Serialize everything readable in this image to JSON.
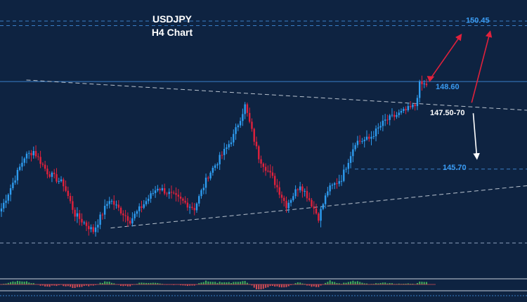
{
  "chart_data": {
    "type": "candlestick",
    "title": "USDJPY",
    "subtitle": "H4 Chart",
    "colors": {
      "background": "#0e2341",
      "up": "#2e9cf0",
      "down": "#e0213c",
      "level_line": "#3a7fc8",
      "trend_line": "#b9c3cf",
      "arrow_red": "#e0213c",
      "arrow_white": "#ffffff"
    },
    "ylim": [
      141.3,
      151.3
    ],
    "grid": false,
    "levels": [
      {
        "label": "150.45",
        "value": 150.45,
        "style": "blue"
      },
      {
        "label": "148.60",
        "value": 148.6,
        "style": "blue"
      },
      {
        "label": "147.50-70",
        "value": 147.6,
        "style": "white"
      },
      {
        "label": "145.70",
        "value": 145.7,
        "style": "blue"
      }
    ],
    "trend_lines": [
      {
        "from": [
          0.05,
          148.65
        ],
        "to": [
          1.0,
          147.65
        ]
      },
      {
        "from": [
          0.21,
          143.75
        ],
        "to": [
          1.0,
          145.15
        ]
      }
    ],
    "anchors": [
      [
        0,
        144.4
      ],
      [
        10,
        146.1
      ],
      [
        14,
        146.3
      ],
      [
        20,
        145.6
      ],
      [
        27,
        145.2
      ],
      [
        32,
        144.2
      ],
      [
        40,
        143.65
      ],
      [
        47,
        144.7
      ],
      [
        56,
        144.0
      ],
      [
        68,
        145.1
      ],
      [
        75,
        144.8
      ],
      [
        84,
        144.4
      ],
      [
        90,
        145.5
      ],
      [
        98,
        146.4
      ],
      [
        101,
        146.8
      ],
      [
        106,
        147.8
      ],
      [
        112,
        146.1
      ],
      [
        118,
        145.4
      ],
      [
        124,
        144.5
      ],
      [
        130,
        145.2
      ],
      [
        134,
        144.7
      ],
      [
        138,
        144.1
      ],
      [
        142,
        145.0
      ],
      [
        148,
        145.4
      ],
      [
        154,
        146.6
      ],
      [
        160,
        146.7
      ],
      [
        167,
        147.3
      ],
      [
        175,
        147.6
      ],
      [
        180,
        147.8
      ],
      [
        182,
        148.5
      ],
      [
        185,
        148.5
      ]
    ],
    "arrows": [
      {
        "color": "red",
        "from": [
          0.815,
          148.65
        ],
        "to": [
          0.875,
          150.15
        ]
      },
      {
        "color": "red",
        "from": [
          0.895,
          147.9
        ],
        "to": [
          0.93,
          150.25
        ]
      },
      {
        "color": "red",
        "from": [
          0.815,
          148.7
        ],
        "to": [
          0.822,
          148.75
        ]
      },
      {
        "color": "white",
        "from": [
          0.898,
          147.55
        ],
        "to": [
          0.905,
          146.05
        ]
      }
    ],
    "indicator_panel": {
      "type": "histogram"
    }
  }
}
